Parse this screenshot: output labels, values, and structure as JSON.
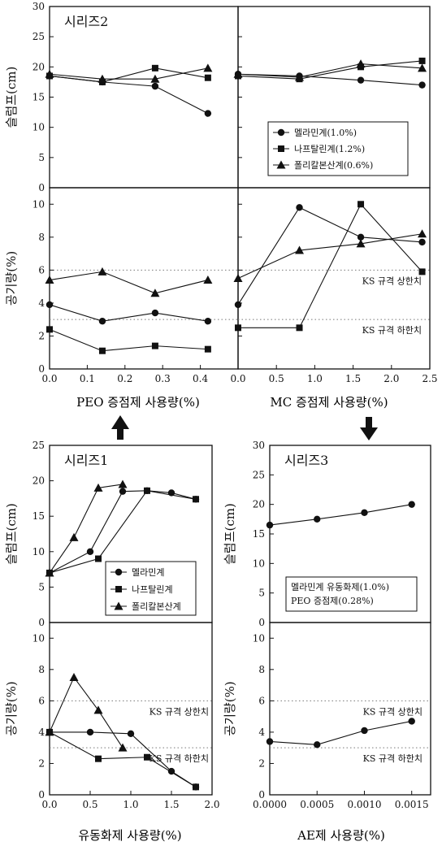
{
  "texts": {
    "top_x_label_left": "PEO 증점제 사용량(%)",
    "top_x_label_right": "MC 증점제 사용량(%)",
    "bot_x_label_left": "유동화제 사용량(%)",
    "bot_x_label_right": "AE제 사용량(%)"
  },
  "colors": {
    "line": "#111111",
    "dotted": "#777777",
    "background": "#ffffff"
  },
  "chart_data": [
    {
      "type": "line",
      "title": "시리즈2",
      "ylabel": "슬럼프(cm)",
      "xlabel": "PEO 증점제 사용량(%)",
      "ylim": [
        0,
        30
      ],
      "yticks": [
        0,
        5,
        10,
        15,
        20,
        25,
        30
      ],
      "xlim": [
        0,
        0.5
      ],
      "x": [
        0.0,
        0.14,
        0.28,
        0.42
      ],
      "legend_position": "right",
      "series": [
        {
          "name": "멜라민계(1.0%)",
          "marker": "circle",
          "values": [
            18.5,
            17.5,
            16.8,
            12.3
          ]
        },
        {
          "name": "나프탈린계(1.2%)",
          "marker": "square",
          "values": [
            18.5,
            17.5,
            19.8,
            18.2
          ]
        },
        {
          "name": "폴리칼본산계(0.6%)",
          "marker": "triangle",
          "values": [
            18.8,
            18.0,
            18.0,
            19.8
          ]
        }
      ]
    },
    {
      "type": "line",
      "title": "",
      "ylabel": "",
      "xlabel": "MC 증점제 사용량(%)",
      "ylim": [
        0,
        30
      ],
      "yticks": [
        0,
        5,
        10,
        15,
        20,
        25,
        30
      ],
      "xlim": [
        0,
        2.5
      ],
      "x": [
        0.0,
        0.8,
        1.6,
        2.4
      ],
      "series": [
        {
          "name": "멜라민계(1.0%)",
          "marker": "circle",
          "values": [
            18.8,
            18.5,
            17.8,
            17.0
          ]
        },
        {
          "name": "나프탈린계(1.2%)",
          "marker": "square",
          "values": [
            18.5,
            18.0,
            20.0,
            21.0
          ]
        },
        {
          "name": "폴리칼본산계(0.6%)",
          "marker": "triangle",
          "values": [
            18.8,
            18.3,
            20.5,
            19.8
          ]
        }
      ]
    },
    {
      "type": "line",
      "title": "",
      "ylabel": "공기량(%)",
      "xlabel": "PEO 증점제 사용량(%)",
      "ylim": [
        0,
        11
      ],
      "yticks": [
        0,
        2,
        4,
        6,
        8,
        10
      ],
      "xlim": [
        0,
        0.5
      ],
      "xticks": [
        "0.0",
        "0.1",
        "0.2",
        "0.3",
        "0.4"
      ],
      "x": [
        0.0,
        0.14,
        0.28,
        0.42
      ],
      "series": [
        {
          "name": "멜라민계(1.0%)",
          "marker": "circle",
          "values": [
            3.9,
            2.9,
            3.4,
            2.9
          ]
        },
        {
          "name": "나프탈린계(1.2%)",
          "marker": "square",
          "values": [
            2.4,
            1.1,
            1.4,
            1.2
          ]
        },
        {
          "name": "폴리칼본산계(0.6%)",
          "marker": "triangle",
          "values": [
            5.4,
            5.9,
            4.6,
            5.4
          ]
        }
      ],
      "ref_lines": [
        {
          "y": 6,
          "label": ""
        },
        {
          "y": 3,
          "label": ""
        }
      ]
    },
    {
      "type": "line",
      "title": "",
      "ylabel": "",
      "xlabel": "MC 증점제 사용량(%)",
      "ylim": [
        0,
        11
      ],
      "yticks": [
        0,
        2,
        4,
        6,
        8,
        10
      ],
      "xlim": [
        0,
        2.5
      ],
      "xticks": [
        "0.0",
        "0.5",
        "1.0",
        "1.5",
        "2.0",
        "2.5"
      ],
      "x": [
        0.0,
        0.8,
        1.6,
        2.4
      ],
      "series": [
        {
          "name": "멜라민계(1.0%)",
          "marker": "circle",
          "values": [
            3.9,
            9.8,
            8.0,
            7.7
          ]
        },
        {
          "name": "나프탈린계(1.2%)",
          "marker": "square",
          "values": [
            2.5,
            2.5,
            10.0,
            5.9
          ]
        },
        {
          "name": "폴리칼본산계(0.6%)",
          "marker": "triangle",
          "values": [
            5.5,
            7.2,
            7.6,
            8.2
          ]
        }
      ],
      "ref_lines": [
        {
          "y": 6,
          "label": "KS 규격 상한치"
        },
        {
          "y": 3,
          "label": "KS 규격 하한치"
        }
      ]
    },
    {
      "type": "line",
      "title": "시리즈1",
      "ylabel": "슬럼프(cm)",
      "xlabel": "유동화제 사용량(%)",
      "ylim": [
        0,
        25
      ],
      "yticks": [
        0,
        5,
        10,
        15,
        20,
        25
      ],
      "xlim": [
        0,
        2.0
      ],
      "legend_position": "right",
      "series": [
        {
          "name": "멜라민계",
          "marker": "circle",
          "x": [
            0.0,
            0.5,
            0.9,
            1.2,
            1.5,
            1.8
          ],
          "values": [
            7.0,
            10.0,
            18.5,
            18.6,
            18.3,
            17.4
          ]
        },
        {
          "name": "나프탈린계",
          "marker": "square",
          "x": [
            0.0,
            0.6,
            1.2,
            1.8
          ],
          "values": [
            7.0,
            9.0,
            18.6,
            17.4
          ]
        },
        {
          "name": "폴리칼본산계",
          "marker": "triangle",
          "x": [
            0.0,
            0.3,
            0.6,
            0.9
          ],
          "values": [
            7.0,
            12.0,
            19.0,
            19.5
          ]
        }
      ]
    },
    {
      "type": "line",
      "title": "",
      "ylabel": "공기량(%)",
      "xlabel": "유동화제 사용량(%)",
      "ylim": [
        0,
        11
      ],
      "yticks": [
        0,
        2,
        4,
        6,
        8,
        10
      ],
      "xlim": [
        0,
        2.0
      ],
      "xticks": [
        "0.0",
        "0.5",
        "1.0",
        "1.5",
        "2.0"
      ],
      "series": [
        {
          "name": "멜라민계",
          "marker": "circle",
          "x": [
            0.0,
            0.5,
            1.0,
            1.5,
            1.8
          ],
          "values": [
            4.0,
            4.0,
            3.9,
            1.5,
            0.5
          ]
        },
        {
          "name": "나프탈린계",
          "marker": "square",
          "x": [
            0.0,
            0.6,
            1.2,
            1.8
          ],
          "values": [
            4.0,
            2.3,
            2.4,
            0.5
          ]
        },
        {
          "name": "폴리칼본산계",
          "marker": "triangle",
          "x": [
            0.0,
            0.3,
            0.6,
            0.9
          ],
          "values": [
            4.0,
            7.5,
            5.4,
            3.0
          ]
        }
      ],
      "ref_lines": [
        {
          "y": 6,
          "label": "KS 규격 상한치"
        },
        {
          "y": 3,
          "label": "KS 규격 하한치"
        }
      ]
    },
    {
      "type": "line",
      "title": "시리즈3",
      "ylabel": "슬럼프(cm)",
      "xlabel": "AE제 사용량(%)",
      "ylim": [
        0,
        30
      ],
      "yticks": [
        0,
        5,
        10,
        15,
        20,
        25,
        30
      ],
      "xlim": [
        0,
        0.0017
      ],
      "series": [
        {
          "name": "",
          "marker": "circle",
          "x": [
            0.0,
            0.0005,
            0.001,
            0.0015
          ],
          "values": [
            16.5,
            17.5,
            18.6,
            20.0
          ]
        }
      ],
      "annotations": [
        "멜라민계 유동화제(1.0%)",
        "PEO 증점제(0.28%)"
      ]
    },
    {
      "type": "line",
      "title": "",
      "ylabel": "공기량(%)",
      "xlabel": "AE제 사용량(%)",
      "ylim": [
        0,
        11
      ],
      "yticks": [
        0,
        2,
        4,
        6,
        8,
        10
      ],
      "xlim": [
        0,
        0.0017
      ],
      "xticks": [
        "0.0000",
        "0.0005",
        "0.0010",
        "0.0015"
      ],
      "series": [
        {
          "name": "",
          "marker": "circle",
          "x": [
            0.0,
            0.0005,
            0.001,
            0.0015
          ],
          "values": [
            3.4,
            3.2,
            4.1,
            4.7
          ]
        }
      ],
      "ref_lines": [
        {
          "y": 6,
          "label": "KS 규격 상한치"
        },
        {
          "y": 3,
          "label": "KS 규격 하한치"
        }
      ]
    }
  ]
}
